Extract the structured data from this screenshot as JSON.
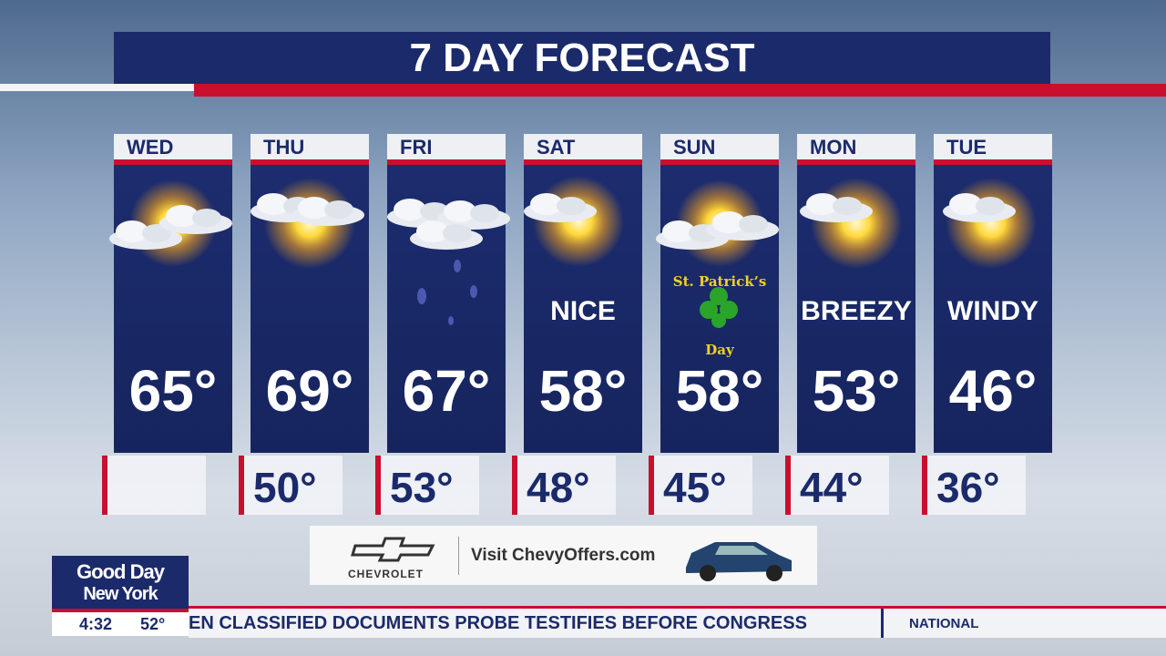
{
  "title": "7 DAY FORECAST",
  "days": [
    {
      "day": "WED",
      "high": "65°"
    },
    {
      "day": "THU",
      "high": "69°",
      "low": "50°"
    },
    {
      "day": "FRI",
      "high": "67°",
      "low": "53°"
    },
    {
      "day": "SAT",
      "condition": "NICE",
      "high": "58°",
      "low": "48°"
    },
    {
      "day": "SUN",
      "note": [
        "St. Patrick’s",
        "Day"
      ],
      "high": "58°",
      "low": "45°"
    },
    {
      "day": "MON",
      "condition": "BREEZY",
      "high": "53°",
      "low": "44°"
    },
    {
      "day": "TUE",
      "condition": "WINDY",
      "high": "46°",
      "low": "36°"
    }
  ],
  "sponsor": {
    "brand": "CHEVROLET",
    "text": "Visit ChevyOffers.com"
  },
  "logo": {
    "line1": "Good Day",
    "line2": "New York",
    "time": "4:32",
    "temp": "52°"
  },
  "ticker": {
    "headline": "EN CLASSIFIED DOCUMENTS PROBE TESTIFIES BEFORE CONGRESS",
    "section": "NATIONAL"
  }
}
